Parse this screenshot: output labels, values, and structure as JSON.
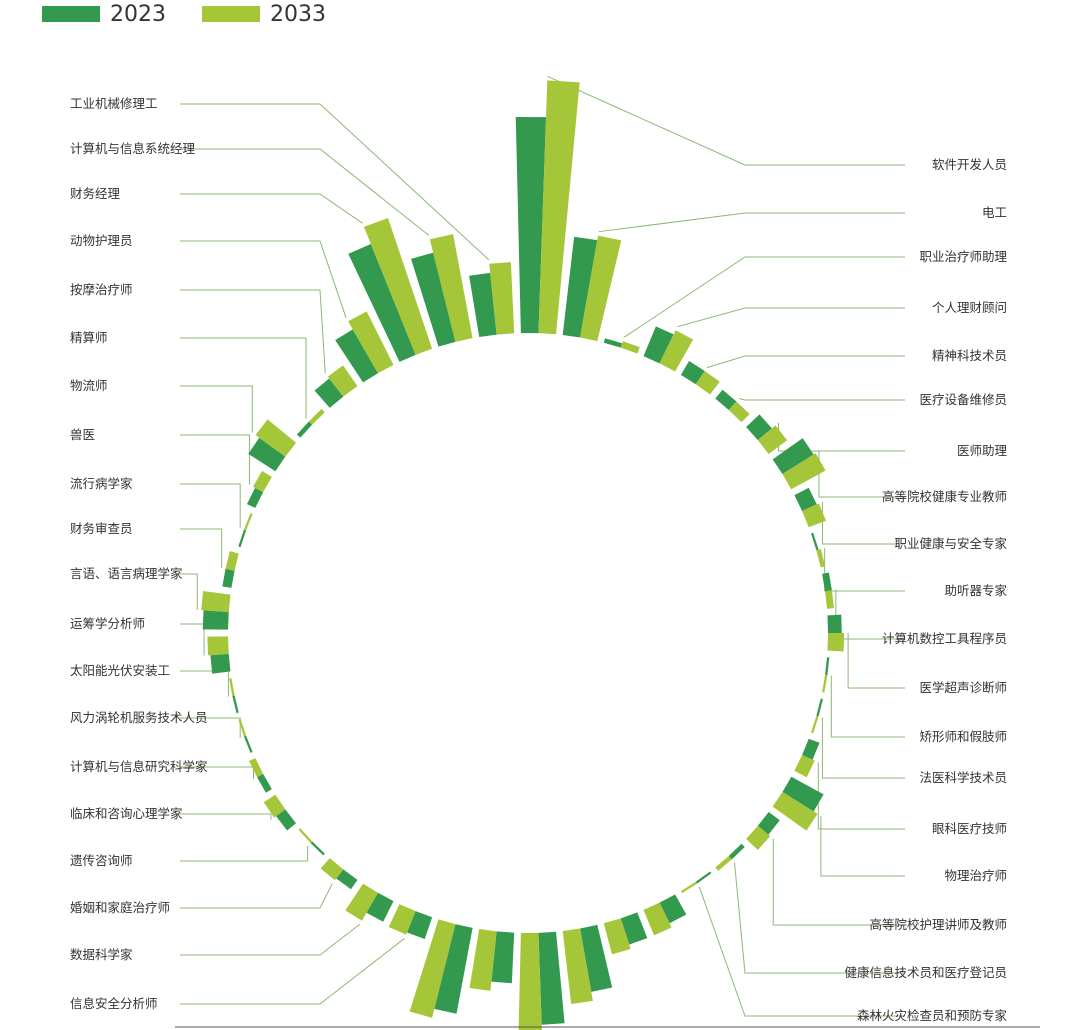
{
  "chart_data": {
    "type": "bar",
    "layout": "radial",
    "legend_position": "top-left",
    "colors": {
      "2023": "#33994f",
      "2033": "#a6c63a",
      "leader": "#8cb874"
    },
    "series": [
      {
        "name": "2023"
      },
      {
        "name": "2033"
      }
    ],
    "categories": [
      {
        "label": "软件开发人员",
        "v2023": 94,
        "v2033": 110
      },
      {
        "label": "电工",
        "v2023": 43,
        "v2033": 45
      },
      {
        "label": "职业治疗师助理",
        "v2023": 2,
        "v2033": 3
      },
      {
        "label": "个人理财顾问",
        "v2023": 14,
        "v2033": 16
      },
      {
        "label": "精神科技术员",
        "v2023": 7,
        "v2033": 7
      },
      {
        "label": "医疗设备维修员",
        "v2023": 5,
        "v2033": 5
      },
      {
        "label": "医师助理",
        "v2023": 8,
        "v2033": 10
      },
      {
        "label": "高等院校健康专业教师",
        "v2023": 16,
        "v2033": 17
      },
      {
        "label": "职业健康与安全专家",
        "v2023": 7,
        "v2033": 8
      },
      {
        "label": "助听器专家",
        "v2023": 1,
        "v2033": 2
      },
      {
        "label": "计算机数控工具程序员",
        "v2023": 3,
        "v2033": 3
      },
      {
        "label": "医学超声诊断师",
        "v2023": 6,
        "v2033": 7
      },
      {
        "label": "矫形师和假肢师",
        "v2023": 1,
        "v2033": 1
      },
      {
        "label": "法医科学技术员",
        "v2023": 1,
        "v2033": 1
      },
      {
        "label": "眼科医疗技师",
        "v2023": 5,
        "v2033": 6
      },
      {
        "label": "物理治疗师",
        "v2023": 16,
        "v2033": 18
      },
      {
        "label": "高等院校护理讲师及教师",
        "v2023": 6,
        "v2033": 7
      },
      {
        "label": "健康信息技术员和医疗登记员",
        "v2023": 2,
        "v2033": 2
      },
      {
        "label": "森林火灾检查员和预防专家",
        "v2023": 1,
        "v2033": 1
      },
      {
        "label": "",
        "v2023": 10,
        "v2033": 12
      },
      {
        "label": "",
        "v2023": 12,
        "v2033": 14
      },
      {
        "label": "",
        "v2023": 28,
        "v2033": 32
      },
      {
        "label": "",
        "v2023": 40,
        "v2033": 44
      },
      {
        "label": "",
        "v2023": 22,
        "v2033": 26
      },
      {
        "label": "",
        "v2023": 38,
        "v2033": 42
      },
      {
        "label": "信息安全分析师",
        "v2023": 10,
        "v2033": 11
      },
      {
        "label": "数据科学家",
        "v2023": 10,
        "v2033": 14
      },
      {
        "label": "婚姻和家庭治疗师",
        "v2023": 5,
        "v2033": 6
      },
      {
        "label": "遗传咨询师",
        "v2023": 1,
        "v2033": 1
      },
      {
        "label": "临床和咨询心理学家",
        "v2023": 5,
        "v2033": 6
      },
      {
        "label": "计算机与信息研究科学家",
        "v2023": 3,
        "v2033": 3
      },
      {
        "label": "风力涡轮机服务技术人员",
        "v2023": 1,
        "v2033": 1
      },
      {
        "label": "太阳能光伏安装工",
        "v2023": 1,
        "v2033": 1
      },
      {
        "label": "运筹学分析师",
        "v2023": 8,
        "v2033": 9
      },
      {
        "label": "言语、语言病理学家",
        "v2023": 11,
        "v2033": 12
      },
      {
        "label": "财务审查员",
        "v2023": 4,
        "v2033": 4
      },
      {
        "label": "流行病学家",
        "v2023": 1,
        "v2033": 1
      },
      {
        "label": "兽医",
        "v2023": 4,
        "v2033": 5
      },
      {
        "label": "物流师",
        "v2023": 14,
        "v2033": 16
      },
      {
        "label": "精算师",
        "v2023": 2,
        "v2033": 2
      },
      {
        "label": "按摩治疗师",
        "v2023": 10,
        "v2033": 11
      },
      {
        "label": "动物护理员",
        "v2023": 22,
        "v2033": 26
      },
      {
        "label": "财务经理",
        "v2023": 52,
        "v2033": 60
      },
      {
        "label": "计算机与信息系统经理",
        "v2023": 40,
        "v2033": 46
      },
      {
        "label": "工业机械修理工",
        "v2023": 27,
        "v2033": 31
      }
    ]
  }
}
